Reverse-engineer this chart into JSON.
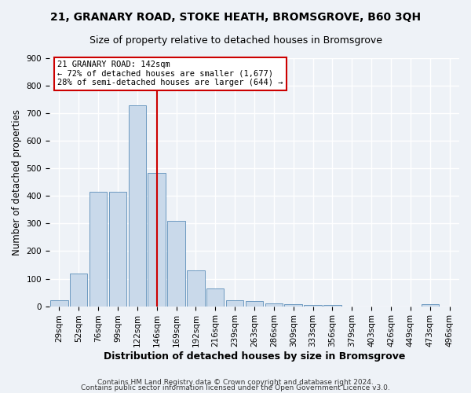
{
  "title": "21, GRANARY ROAD, STOKE HEATH, BROMSGROVE, B60 3QH",
  "subtitle": "Size of property relative to detached houses in Bromsgrove",
  "xlabel": "Distribution of detached houses by size in Bromsgrove",
  "ylabel": "Number of detached properties",
  "bar_labels": [
    "29sqm",
    "52sqm",
    "76sqm",
    "99sqm",
    "122sqm",
    "146sqm",
    "169sqm",
    "192sqm",
    "216sqm",
    "239sqm",
    "263sqm",
    "286sqm",
    "309sqm",
    "333sqm",
    "356sqm",
    "379sqm",
    "403sqm",
    "426sqm",
    "449sqm",
    "473sqm",
    "496sqm"
  ],
  "bar_values": [
    22,
    120,
    415,
    415,
    730,
    485,
    310,
    130,
    65,
    23,
    20,
    11,
    8,
    5,
    5,
    0,
    0,
    0,
    0,
    8,
    0
  ],
  "bar_color": "#c9d9ea",
  "bar_edge_color": "#5b8db8",
  "vline_x_index": 5,
  "vline_color": "#cc0000",
  "annotation_text": "21 GRANARY ROAD: 142sqm\n← 72% of detached houses are smaller (1,677)\n28% of semi-detached houses are larger (644) →",
  "annotation_box_color": "#ffffff",
  "annotation_box_edge_color": "#cc0000",
  "ylim": [
    0,
    900
  ],
  "footnote1": "Contains HM Land Registry data © Crown copyright and database right 2024.",
  "footnote2": "Contains public sector information licensed under the Open Government Licence v3.0.",
  "background_color": "#eef2f7",
  "plot_background_color": "#eef2f7",
  "grid_color": "#ffffff",
  "title_fontsize": 10,
  "subtitle_fontsize": 9,
  "tick_fontsize": 7.5,
  "ylabel_fontsize": 8.5,
  "xlabel_fontsize": 9,
  "footnote_fontsize": 6.5
}
